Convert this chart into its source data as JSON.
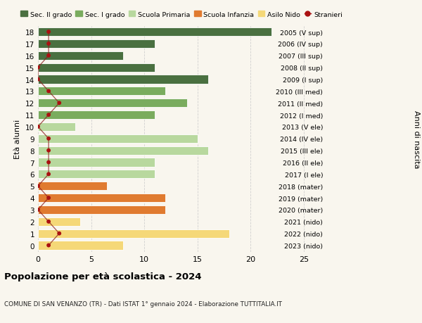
{
  "ages": [
    18,
    17,
    16,
    15,
    14,
    13,
    12,
    11,
    10,
    9,
    8,
    7,
    6,
    5,
    4,
    3,
    2,
    1,
    0
  ],
  "right_labels": [
    "2005 (V sup)",
    "2006 (IV sup)",
    "2007 (III sup)",
    "2008 (II sup)",
    "2009 (I sup)",
    "2010 (III med)",
    "2011 (II med)",
    "2012 (I med)",
    "2013 (V ele)",
    "2014 (IV ele)",
    "2015 (III ele)",
    "2016 (II ele)",
    "2017 (I ele)",
    "2018 (mater)",
    "2019 (mater)",
    "2020 (mater)",
    "2021 (nido)",
    "2022 (nido)",
    "2023 (nido)"
  ],
  "bar_values": [
    22,
    11,
    8,
    11,
    16,
    12,
    14,
    11,
    3.5,
    15,
    16,
    11,
    11,
    6.5,
    12,
    12,
    4,
    18,
    8
  ],
  "bar_colors": [
    "#4a7040",
    "#4a7040",
    "#4a7040",
    "#4a7040",
    "#4a7040",
    "#7aac5e",
    "#7aac5e",
    "#7aac5e",
    "#b8d89e",
    "#b8d89e",
    "#b8d89e",
    "#b8d89e",
    "#b8d89e",
    "#e07b30",
    "#e07b30",
    "#e07b30",
    "#f5d878",
    "#f5d878",
    "#f5d878"
  ],
  "stranieri_values": [
    1,
    1,
    1,
    0,
    0,
    1,
    2,
    1,
    0,
    1,
    1,
    1,
    1,
    0,
    1,
    0,
    1,
    2,
    1
  ],
  "legend_items": [
    {
      "label": "Sec. II grado",
      "color": "#4a7040"
    },
    {
      "label": "Sec. I grado",
      "color": "#7aac5e"
    },
    {
      "label": "Scuola Primaria",
      "color": "#b8d89e"
    },
    {
      "label": "Scuola Infanzia",
      "color": "#e07b30"
    },
    {
      "label": "Asilo Nido",
      "color": "#f5d878"
    },
    {
      "label": "Stranieri",
      "color": "#aa1111"
    }
  ],
  "ylabel": "Età alunni",
  "right_ylabel": "Anni di nascita",
  "title": "Popolazione per età scolastica - 2024",
  "subtitle": "COMUNE DI SAN VENANZO (TR) - Dati ISTAT 1° gennaio 2024 - Elaborazione TUTTITALIA.IT",
  "xlim": [
    0,
    27
  ],
  "ylim_bottom": -0.55,
  "ylim_top": 18.55,
  "bg_color": "#f9f6ee",
  "grid_color": "#cccccc"
}
